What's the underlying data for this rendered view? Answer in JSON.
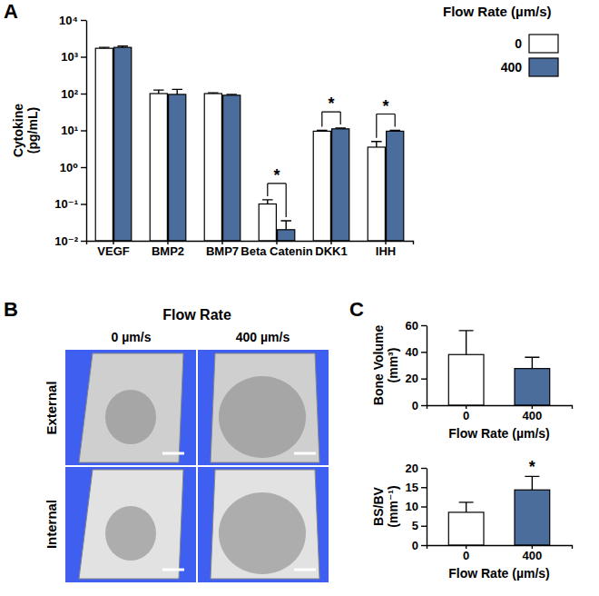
{
  "chart_data": [
    {
      "panel": "A",
      "type": "bar",
      "y_label": "Cytokine (pg/mL)",
      "log": "y",
      "categories": [
        "VEGF",
        "BMP2",
        "BMP7",
        "Beta Catenin",
        "DKK1",
        "IHH"
      ],
      "series": [
        {
          "name": "0",
          "color": "#ffffff",
          "values": [
            1700,
            100,
            100,
            0.1,
            9.5,
            3.5
          ],
          "errors": [
            100,
            25,
            5,
            0.03,
            0.5,
            1.5
          ]
        },
        {
          "name": "400",
          "color": "#4a6d9c",
          "values": [
            1800,
            95,
            90,
            0.02,
            11,
            9.5
          ],
          "errors": [
            150,
            35,
            5,
            0.015,
            0.5,
            0.5
          ]
        }
      ],
      "legend": "right",
      "legend_title": "Flow Rate (µm/s)",
      "ylim": [
        0.01,
        10000
      ],
      "yticks": [
        {
          "value": 0.01,
          "label": "10⁻²"
        },
        {
          "value": 0.1,
          "label": "10⁻¹"
        },
        {
          "value": 1,
          "label": "10⁰"
        },
        {
          "value": 10,
          "label": "10¹"
        },
        {
          "value": 100,
          "label": "10²"
        },
        {
          "value": 1000,
          "label": "10³"
        },
        {
          "value": 10000,
          "label": "10⁴"
        }
      ],
      "annotations": [
        {
          "text": "*",
          "category": "Beta Catenin"
        },
        {
          "text": "*",
          "category": "DKK1"
        },
        {
          "text": "*",
          "category": "IHH"
        }
      ]
    },
    {
      "panel": "C",
      "type": "bar",
      "y_label": "Bone Volume (mm³)",
      "x_label": "Flow Rate (µm/s)",
      "categories": [
        "0",
        "400"
      ],
      "values": [
        38,
        27.5
      ],
      "errors": [
        18,
        8.5
      ],
      "colors": [
        "#ffffff",
        "#4a6d9c"
      ],
      "ylim": [
        0,
        60
      ],
      "yticks": [
        0,
        20,
        40,
        60
      ]
    },
    {
      "type": "bar",
      "y_label": "BS/BV (mm⁻¹)",
      "x_label": "Flow Rate (µm/s)",
      "categories": [
        "0",
        "400"
      ],
      "values": [
        8.5,
        14.3
      ],
      "errors": [
        2.6,
        3.5
      ],
      "colors": [
        "#ffffff",
        "#4a6d9c"
      ],
      "ylim": [
        0,
        20
      ],
      "yticks": [
        0,
        5,
        10,
        15,
        20
      ],
      "annotations": [
        {
          "text": "*",
          "category": "400"
        }
      ]
    }
  ],
  "image_panel": {
    "panel": "B",
    "title": "Flow Rate",
    "columns": [
      "0 µm/s",
      "400 µm/s"
    ],
    "rows": [
      "External",
      "Internal"
    ]
  }
}
